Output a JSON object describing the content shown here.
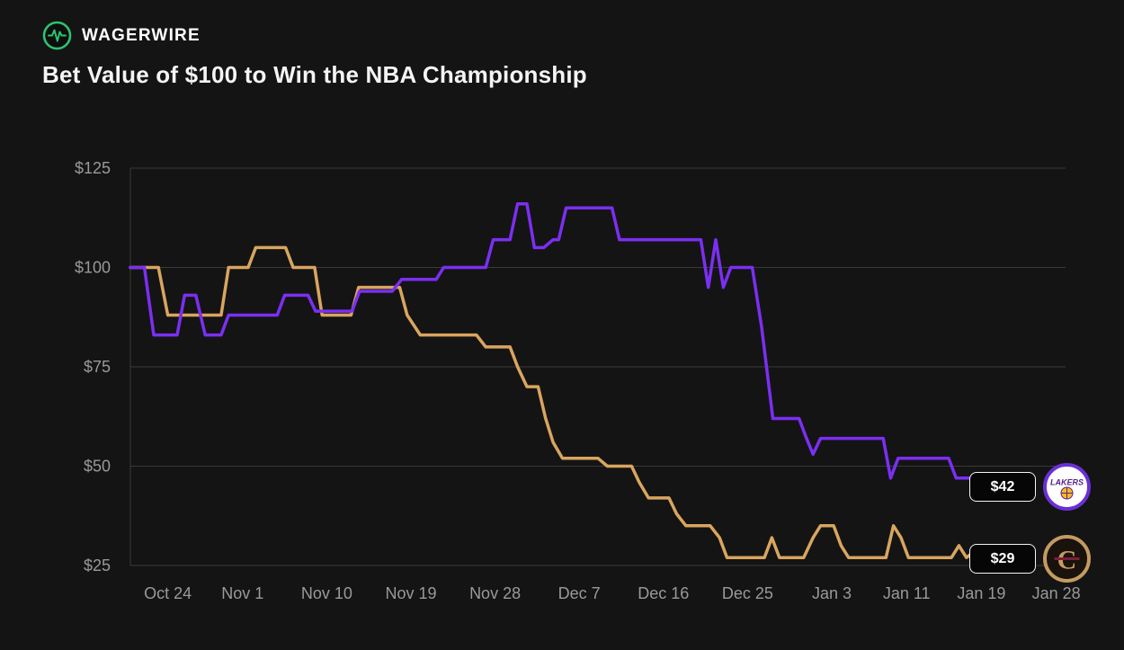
{
  "header": {
    "brand": "WAGERWIRE",
    "title": "Bet Value of $100 to Win the NBA Championship"
  },
  "colors": {
    "background": "#141414",
    "grid": "#3a3a3a",
    "axis_text": "#9a9a9a",
    "brand_green": "#2bc46f",
    "lakers_purple": "#7b2ff2",
    "cavaliers_tan": "#d9a55f"
  },
  "chart_data": {
    "type": "line",
    "title": "Bet Value of $100 to Win the NBA Championship",
    "grid": true,
    "legend_position": "none",
    "ylim": [
      25,
      125
    ],
    "xlim_days": [
      0,
      100
    ],
    "y_ticks": [
      25,
      50,
      75,
      100,
      125
    ],
    "y_tick_labels": [
      "$25",
      "$50",
      "$75",
      "$100",
      "$125"
    ],
    "x_tick_labels": [
      "Oct 24",
      "Nov 1",
      "Nov 10",
      "Nov 19",
      "Nov 28",
      "Dec 7",
      "Dec 16",
      "Dec 25",
      "Jan 3",
      "Jan 11",
      "Jan 19",
      "Jan 28"
    ],
    "x_tick_days": [
      4,
      12,
      21,
      30,
      39,
      48,
      57,
      66,
      75,
      83,
      91,
      99
    ],
    "series": [
      {
        "name": "Lakers",
        "color": "#7b2ff2",
        "current_label": "$42",
        "current_value": 42,
        "points": [
          [
            0,
            100
          ],
          [
            1.5,
            100
          ],
          [
            2.5,
            83
          ],
          [
            5,
            83
          ],
          [
            5.8,
            93
          ],
          [
            7,
            93
          ],
          [
            8,
            83
          ],
          [
            9.7,
            83
          ],
          [
            10.5,
            88
          ],
          [
            15.7,
            88
          ],
          [
            16.5,
            93
          ],
          [
            19,
            93
          ],
          [
            19.8,
            89
          ],
          [
            23.7,
            89
          ],
          [
            24.5,
            94
          ],
          [
            28,
            94
          ],
          [
            29,
            97
          ],
          [
            32.7,
            97
          ],
          [
            33.5,
            100
          ],
          [
            38,
            100
          ],
          [
            38.8,
            107
          ],
          [
            40.6,
            107
          ],
          [
            41.4,
            116
          ],
          [
            42.4,
            116
          ],
          [
            43.2,
            105
          ],
          [
            44.2,
            105
          ],
          [
            45.2,
            107
          ],
          [
            45.8,
            107
          ],
          [
            46.6,
            115
          ],
          [
            51.5,
            115
          ],
          [
            52.3,
            107
          ],
          [
            61,
            107
          ],
          [
            61.8,
            95
          ],
          [
            62.6,
            107
          ],
          [
            63.4,
            95
          ],
          [
            64.2,
            100
          ],
          [
            66.5,
            100
          ],
          [
            67.5,
            85
          ],
          [
            68.7,
            62
          ],
          [
            71.5,
            62
          ],
          [
            72.3,
            57
          ],
          [
            73,
            53
          ],
          [
            73.8,
            57
          ],
          [
            80.5,
            57
          ],
          [
            81.3,
            47
          ],
          [
            82.1,
            52
          ],
          [
            87.5,
            52
          ],
          [
            88.3,
            47
          ],
          [
            91,
            47
          ],
          [
            92,
            42
          ],
          [
            96.5,
            42
          ]
        ]
      },
      {
        "name": "Cavaliers",
        "color": "#d9a55f",
        "current_label": "$29",
        "current_value": 29,
        "points": [
          [
            0,
            100
          ],
          [
            3,
            100
          ],
          [
            4,
            88
          ],
          [
            9.7,
            88
          ],
          [
            10.5,
            100
          ],
          [
            12.6,
            100
          ],
          [
            13.4,
            105
          ],
          [
            16.6,
            105
          ],
          [
            17.4,
            100
          ],
          [
            19.7,
            100
          ],
          [
            20.5,
            88
          ],
          [
            23.6,
            88
          ],
          [
            24.4,
            95
          ],
          [
            28.8,
            95
          ],
          [
            29.6,
            88
          ],
          [
            31,
            83
          ],
          [
            37,
            83
          ],
          [
            38,
            80
          ],
          [
            40.6,
            80
          ],
          [
            41.4,
            75
          ],
          [
            42.4,
            70
          ],
          [
            43.6,
            70
          ],
          [
            44.4,
            62
          ],
          [
            45.2,
            56
          ],
          [
            46.2,
            52
          ],
          [
            50,
            52
          ],
          [
            51,
            50
          ],
          [
            53.6,
            50
          ],
          [
            54.4,
            46
          ],
          [
            55.4,
            42
          ],
          [
            57.6,
            42
          ],
          [
            58.4,
            38
          ],
          [
            59.4,
            35
          ],
          [
            62,
            35
          ],
          [
            63,
            32
          ],
          [
            63.8,
            27
          ],
          [
            67.8,
            27
          ],
          [
            68.6,
            32
          ],
          [
            69.4,
            27
          ],
          [
            72,
            27
          ],
          [
            73,
            32
          ],
          [
            73.8,
            35
          ],
          [
            75.2,
            35
          ],
          [
            76,
            30
          ],
          [
            76.8,
            27
          ],
          [
            80.8,
            27
          ],
          [
            81.6,
            35
          ],
          [
            82.4,
            32
          ],
          [
            83.2,
            27
          ],
          [
            87.8,
            27
          ],
          [
            88.6,
            30
          ],
          [
            89.4,
            27
          ],
          [
            90.5,
            29
          ],
          [
            96.5,
            29
          ]
        ]
      }
    ]
  }
}
